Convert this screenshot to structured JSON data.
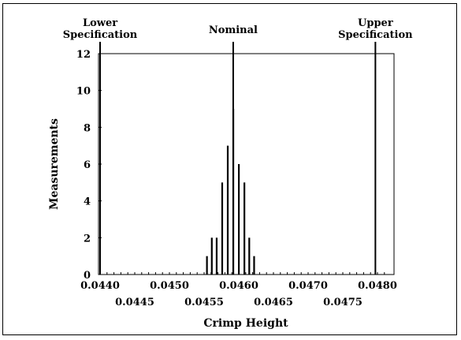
{
  "chart_data": {
    "type": "bar",
    "xlabel": "Crimp Height",
    "ylabel": "Measurements",
    "xlim": [
      0.0439,
      0.0481
    ],
    "ylim": [
      0,
      12
    ],
    "yticks": [
      "0",
      "2",
      "4",
      "6",
      "8",
      "10",
      "12"
    ],
    "xticks_upper": [
      "0.0440",
      "0.0450",
      "0.0460",
      "0.0470",
      "0.0480"
    ],
    "xticks_lower": [
      "0.0445",
      "0.0455",
      "0.0465",
      "0.0475"
    ],
    "grid": false,
    "bin_width": 0.0001,
    "bars": [
      {
        "x": 0.04554,
        "y": 1
      },
      {
        "x": 0.04561,
        "y": 2
      },
      {
        "x": 0.04568,
        "y": 2
      },
      {
        "x": 0.04576,
        "y": 5
      },
      {
        "x": 0.04584,
        "y": 7
      },
      {
        "x": 0.04592,
        "y": 9
      },
      {
        "x": 0.046,
        "y": 6
      },
      {
        "x": 0.04608,
        "y": 5
      },
      {
        "x": 0.04615,
        "y": 2
      },
      {
        "x": 0.04622,
        "y": 1
      }
    ],
    "reference_lines": [
      {
        "label_lines": [
          "Lower",
          "Specification"
        ],
        "x": 0.044
      },
      {
        "label_lines": [
          "Nominal"
        ],
        "x": 0.04592
      },
      {
        "label_lines": [
          "Upper",
          "Specification"
        ],
        "x": 0.04797
      }
    ]
  }
}
